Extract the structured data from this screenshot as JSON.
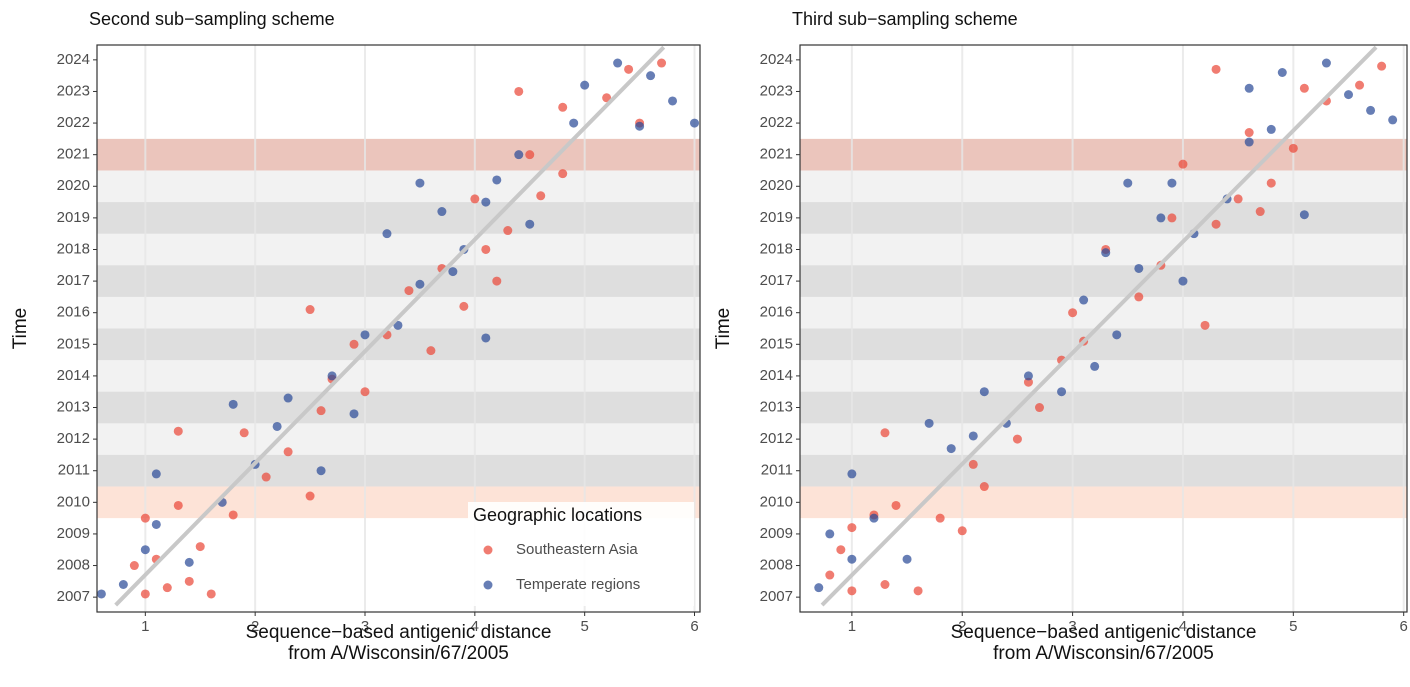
{
  "chart_data": [
    {
      "type": "scatter",
      "title": "Second sub−sampling scheme",
      "x_label": [
        "Sequence−based antigenic distance",
        "from A/Wisconsin/67/2005"
      ],
      "y_label": "Time",
      "xlim": [
        0.56,
        6.05
      ],
      "ylim": [
        2006.53,
        2024.47
      ],
      "xticks": [
        1,
        2,
        3,
        4,
        5,
        6
      ],
      "yticks": [
        2007,
        2008,
        2009,
        2010,
        2011,
        2012,
        2013,
        2014,
        2015,
        2016,
        2017,
        2018,
        2019,
        2020,
        2021,
        2022,
        2023,
        2024
      ],
      "grid": true,
      "bands": [
        {
          "from": 2010.5,
          "to": 2020.5,
          "color": "#f2f2f2"
        },
        {
          "from": 2010.5,
          "to": 2011.5,
          "color": "#dedede"
        },
        {
          "from": 2012.5,
          "to": 2013.5,
          "color": "#dedede"
        },
        {
          "from": 2014.5,
          "to": 2015.5,
          "color": "#dedede"
        },
        {
          "from": 2016.5,
          "to": 2017.5,
          "color": "#dedede"
        },
        {
          "from": 2018.5,
          "to": 2019.5,
          "color": "#dedede"
        },
        {
          "from": 2009.5,
          "to": 2010.5,
          "color": "#fde3d7"
        },
        {
          "from": 2020.5,
          "to": 2021.5,
          "color": "#ebc5bc"
        }
      ],
      "trend_line": {
        "x": [
          0.73,
          5.72
        ],
        "y": [
          2006.75,
          2024.4
        ],
        "color": "#c8c8c8"
      },
      "legend_title": "Geographic locations",
      "legend": "bottom-right",
      "series": [
        {
          "name": "Southeastern Asia",
          "color": "#ea4a3a",
          "x": [
            1.0,
            1.2,
            1.4,
            1.6,
            1.1,
            1.5,
            0.9,
            1.3,
            1.0,
            1.8,
            1.3,
            2.1,
            2.3,
            1.9,
            2.5,
            2.6,
            2.7,
            3.0,
            2.5,
            3.2,
            3.4,
            3.7,
            3.9,
            4.1,
            4.3,
            4.0,
            4.6,
            4.5,
            4.8,
            4.4,
            4.8,
            5.2,
            5.4,
            5.7,
            5.5,
            3.6,
            2.9,
            4.2
          ],
          "values": [
            2007.1,
            2007.3,
            2007.5,
            2007.1,
            2008.2,
            2008.6,
            2008.0,
            2009.9,
            2009.5,
            2009.6,
            2012.25,
            2010.8,
            2011.6,
            2012.2,
            2010.2,
            2012.9,
            2013.9,
            2013.5,
            2016.1,
            2015.3,
            2016.7,
            2017.4,
            2016.2,
            2018.0,
            2018.6,
            2019.6,
            2019.7,
            2021.0,
            2020.4,
            2023.0,
            2022.5,
            2022.8,
            2023.7,
            2023.9,
            2022.0,
            2014.8,
            2015.0,
            2017.0
          ]
        },
        {
          "name": "Temperate regions",
          "color": "#2c4c98",
          "x": [
            0.6,
            0.8,
            1.0,
            1.1,
            1.1,
            1.4,
            1.7,
            2.0,
            2.2,
            1.8,
            2.3,
            2.7,
            2.9,
            3.0,
            3.3,
            3.5,
            3.2,
            3.5,
            3.7,
            3.9,
            4.1,
            4.2,
            4.1,
            4.4,
            4.9,
            5.0,
            5.3,
            5.6,
            5.8,
            6.0,
            5.5,
            4.5,
            2.6,
            3.8
          ],
          "values": [
            2007.1,
            2007.4,
            2008.5,
            2009.3,
            2010.9,
            2008.1,
            2010.0,
            2011.2,
            2012.4,
            2013.1,
            2013.3,
            2014.0,
            2012.8,
            2015.3,
            2015.6,
            2016.9,
            2018.5,
            2020.1,
            2019.2,
            2018.0,
            2019.5,
            2020.2,
            2015.2,
            2021.0,
            2022.0,
            2023.2,
            2023.9,
            2023.5,
            2022.7,
            2022.0,
            2021.9,
            2018.8,
            2011.0,
            2017.3
          ]
        }
      ]
    },
    {
      "type": "scatter",
      "title": "Third sub−sampling scheme",
      "x_label": [
        "Sequence−based antigenic distance",
        "from A/Wisconsin/67/2005"
      ],
      "y_label": "Time",
      "xlim": [
        0.53,
        6.03
      ],
      "ylim": [
        2006.53,
        2024.47
      ],
      "xticks": [
        1,
        2,
        3,
        4,
        5,
        6
      ],
      "yticks": [
        2007,
        2008,
        2009,
        2010,
        2011,
        2012,
        2013,
        2014,
        2015,
        2016,
        2017,
        2018,
        2019,
        2020,
        2021,
        2022,
        2023,
        2024
      ],
      "grid": true,
      "bands": [
        {
          "from": 2010.5,
          "to": 2020.5,
          "color": "#f2f2f2"
        },
        {
          "from": 2010.5,
          "to": 2011.5,
          "color": "#dedede"
        },
        {
          "from": 2012.5,
          "to": 2013.5,
          "color": "#dedede"
        },
        {
          "from": 2014.5,
          "to": 2015.5,
          "color": "#dedede"
        },
        {
          "from": 2016.5,
          "to": 2017.5,
          "color": "#dedede"
        },
        {
          "from": 2018.5,
          "to": 2019.5,
          "color": "#dedede"
        },
        {
          "from": 2009.5,
          "to": 2010.5,
          "color": "#fde3d7"
        },
        {
          "from": 2020.5,
          "to": 2021.5,
          "color": "#ebc5bc"
        }
      ],
      "trend_line": {
        "x": [
          0.73,
          5.75
        ],
        "y": [
          2006.75,
          2024.4
        ],
        "color": "#c8c8c8"
      },
      "series": [
        {
          "name": "Southeastern Asia",
          "color": "#ea4a3a",
          "x": [
            0.8,
            1.0,
            1.3,
            1.6,
            0.9,
            1.2,
            1.4,
            1.0,
            1.3,
            1.8,
            2.0,
            2.2,
            2.5,
            2.6,
            2.9,
            3.1,
            2.7,
            3.3,
            3.6,
            3.8,
            3.9,
            4.2,
            4.3,
            4.5,
            4.7,
            4.8,
            4.6,
            5.0,
            5.3,
            5.6,
            5.8,
            4.3,
            5.1,
            3.0,
            4.0,
            2.1
          ],
          "values": [
            2007.7,
            2007.2,
            2007.4,
            2007.2,
            2008.5,
            2009.6,
            2009.9,
            2009.2,
            2012.2,
            2009.5,
            2009.1,
            2010.5,
            2012.0,
            2013.8,
            2014.5,
            2015.1,
            2013.0,
            2018.0,
            2016.5,
            2017.5,
            2019.0,
            2015.6,
            2018.8,
            2019.6,
            2019.2,
            2020.1,
            2021.7,
            2021.2,
            2022.7,
            2023.2,
            2023.8,
            2023.7,
            2023.1,
            2016.0,
            2020.7,
            2011.2
          ]
        },
        {
          "name": "Temperate regions",
          "color": "#2c4c98",
          "x": [
            0.7,
            0.8,
            1.0,
            1.0,
            1.2,
            1.5,
            1.7,
            1.9,
            2.1,
            2.4,
            2.2,
            2.6,
            2.9,
            3.1,
            3.2,
            3.4,
            3.5,
            3.6,
            3.8,
            3.9,
            4.1,
            4.0,
            4.4,
            4.6,
            4.8,
            4.9,
            5.1,
            5.3,
            5.5,
            5.7,
            5.9,
            3.3,
            4.6
          ],
          "values": [
            2007.3,
            2009.0,
            2008.2,
            2010.9,
            2009.5,
            2008.2,
            2012.5,
            2011.7,
            2012.1,
            2012.5,
            2013.5,
            2014.0,
            2013.5,
            2016.4,
            2014.3,
            2015.3,
            2020.1,
            2017.4,
            2019.0,
            2020.1,
            2018.5,
            2017.0,
            2019.6,
            2023.1,
            2021.8,
            2023.6,
            2019.1,
            2023.9,
            2022.9,
            2022.4,
            2022.1,
            2017.9,
            2021.4
          ]
        }
      ]
    }
  ]
}
